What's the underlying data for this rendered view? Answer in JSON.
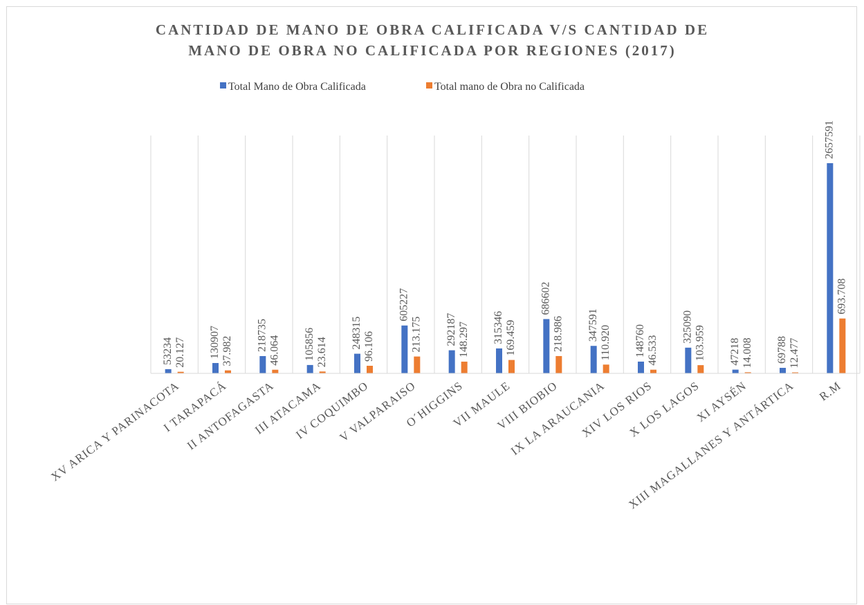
{
  "chart_data": {
    "type": "bar",
    "title": [
      "CANTIDAD DE MANO DE OBRA CALIFICADA V/S CANTIDAD DE",
      "MANO DE OBRA NO CALIFICADA POR REGIONES (2017)"
    ],
    "categories": [
      "XV ARICA Y PARINACOTA",
      "I TARAPACÁ",
      "II ANTOFAGASTA",
      "III ATACAMA",
      "IV COQUIMBO",
      "V VALPARAISO",
      "O´HIGGINS",
      "VII MAULE",
      "VIII BIOBIO",
      "IX LA ARAUCANIA",
      "XIV LOS RIOS",
      "X LOS LAGOS",
      "XI AYSÉN",
      "XIII MAGALLANES Y ANTÁRTICA",
      "R.M"
    ],
    "series": [
      {
        "name": "Total Mano de Obra Calificada",
        "color": "#4472c4",
        "values": [
          53234,
          130907,
          218735,
          105856,
          248315,
          605227,
          292187,
          315346,
          686602,
          347591,
          148760,
          325090,
          47218,
          69788,
          2657591
        ]
      },
      {
        "name": "Total mano de Obra no Calificada",
        "color": "#ed7d31",
        "values": [
          20127,
          37982,
          46064,
          23614,
          96106,
          213175,
          148297,
          169459,
          218986,
          110920,
          46533,
          103959,
          14008,
          12477,
          693708
        ],
        "value_labels": [
          "20.127",
          "37.982",
          "46.064",
          "23.614",
          "96.106",
          "213.175",
          "148.297",
          "169.459",
          "218.986",
          "110.920",
          "46.533",
          "103.959",
          "14.008",
          "12.477",
          "693.708"
        ]
      }
    ],
    "grid": true,
    "legend": "top"
  }
}
